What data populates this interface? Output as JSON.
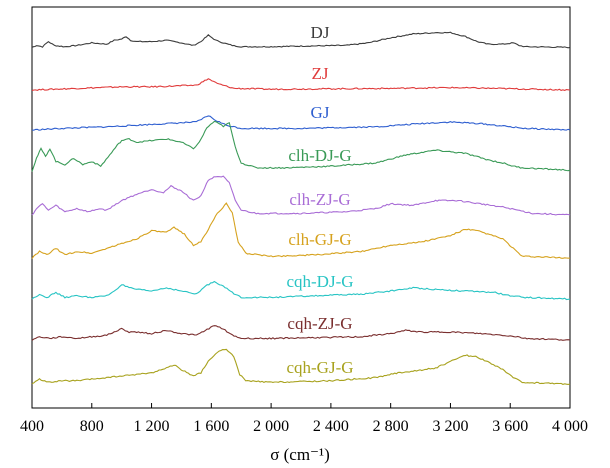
{
  "chart_data": {
    "type": "line",
    "xlabel": "σ (cm⁻¹)",
    "xlim": [
      400,
      4000
    ],
    "x_ticks": [
      400,
      800,
      1200,
      1600,
      2000,
      2400,
      2800,
      3200,
      3600,
      4000
    ],
    "x_tick_labels": [
      "400",
      "800",
      "1 200",
      "1 600",
      "2 000",
      "2 400",
      "2 800",
      "3 200",
      "3 600",
      "4 000"
    ],
    "y_ticks_shown": false,
    "grid": false,
    "legend": "none",
    "series": [
      {
        "name": "DJ",
        "color": "#3c3c3c",
        "profile": "base",
        "amp": 0.8,
        "values_points": [
          [
            400,
            0.5
          ],
          [
            430,
            2
          ],
          [
            470,
            1
          ],
          [
            510,
            5
          ],
          [
            550,
            2
          ],
          [
            620,
            1
          ],
          [
            700,
            2
          ],
          [
            800,
            4
          ],
          [
            900,
            3
          ],
          [
            950,
            6
          ],
          [
            1000,
            7
          ],
          [
            1030,
            9
          ],
          [
            1060,
            6
          ],
          [
            1100,
            5
          ],
          [
            1200,
            5
          ],
          [
            1300,
            6
          ],
          [
            1400,
            4
          ],
          [
            1480,
            2
          ],
          [
            1530,
            5
          ],
          [
            1580,
            10
          ],
          [
            1630,
            6
          ],
          [
            1680,
            4
          ],
          [
            1740,
            2
          ],
          [
            1800,
            1
          ],
          [
            2000,
            1
          ],
          [
            2200,
            1.5
          ],
          [
            2500,
            2
          ],
          [
            2650,
            4
          ],
          [
            2800,
            8
          ],
          [
            2950,
            11
          ],
          [
            3100,
            12
          ],
          [
            3200,
            12
          ],
          [
            3300,
            9
          ],
          [
            3380,
            5
          ],
          [
            3450,
            3
          ],
          [
            3550,
            3
          ],
          [
            3620,
            4
          ],
          [
            3660,
            2
          ],
          [
            3700,
            1
          ],
          [
            4000,
            0.5
          ]
        ]
      },
      {
        "name": "ZJ",
        "color": "#e03b3b",
        "profile": "flat",
        "amp": 1.0,
        "values_points": [
          [
            400,
            0
          ],
          [
            700,
            1
          ],
          [
            1000,
            2
          ],
          [
            1200,
            2
          ],
          [
            1500,
            3
          ],
          [
            1580,
            7
          ],
          [
            1640,
            4
          ],
          [
            1750,
            1
          ],
          [
            2000,
            0.5
          ],
          [
            2800,
            1
          ],
          [
            3200,
            1.5
          ],
          [
            3500,
            1
          ],
          [
            4000,
            0
          ]
        ]
      },
      {
        "name": "GJ",
        "color": "#2f5fd0",
        "profile": "blue",
        "amp": 1.0,
        "values_points": [
          [
            400,
            0
          ],
          [
            600,
            1
          ],
          [
            900,
            2
          ],
          [
            1100,
            3
          ],
          [
            1300,
            4
          ],
          [
            1500,
            5
          ],
          [
            1580,
            9
          ],
          [
            1630,
            6
          ],
          [
            1700,
            3
          ],
          [
            1800,
            1
          ],
          [
            2200,
            1
          ],
          [
            2700,
            2
          ],
          [
            3000,
            4
          ],
          [
            3200,
            5
          ],
          [
            3400,
            4
          ],
          [
            3600,
            2
          ],
          [
            3700,
            1
          ],
          [
            4000,
            0
          ]
        ]
      },
      {
        "name": "clh-DJ-G",
        "color": "#3a9a57",
        "profile": "big",
        "amp": 1.0,
        "values_points": [
          [
            400,
            0
          ],
          [
            430,
            8
          ],
          [
            460,
            14
          ],
          [
            490,
            9
          ],
          [
            520,
            14
          ],
          [
            560,
            6
          ],
          [
            620,
            4
          ],
          [
            680,
            8
          ],
          [
            740,
            4
          ],
          [
            800,
            6
          ],
          [
            860,
            3
          ],
          [
            920,
            10
          ],
          [
            970,
            16
          ],
          [
            1000,
            19
          ],
          [
            1050,
            20
          ],
          [
            1100,
            18
          ],
          [
            1200,
            19
          ],
          [
            1300,
            20
          ],
          [
            1400,
            18
          ],
          [
            1480,
            14
          ],
          [
            1520,
            18
          ],
          [
            1570,
            27
          ],
          [
            1620,
            31
          ],
          [
            1680,
            28
          ],
          [
            1720,
            30
          ],
          [
            1760,
            15
          ],
          [
            1800,
            5
          ],
          [
            1900,
            2
          ],
          [
            2100,
            2
          ],
          [
            2400,
            3
          ],
          [
            2700,
            5
          ],
          [
            2900,
            10
          ],
          [
            3100,
            13
          ],
          [
            3300,
            11
          ],
          [
            3450,
            7
          ],
          [
            3550,
            5
          ],
          [
            3620,
            3
          ],
          [
            3680,
            2
          ],
          [
            4000,
            0.5
          ]
        ]
      },
      {
        "name": "clh-ZJ-G",
        "color": "#a96dd6",
        "profile": "big",
        "amp": 1.0,
        "values_points": [
          [
            400,
            0
          ],
          [
            430,
            4
          ],
          [
            470,
            7
          ],
          [
            510,
            3
          ],
          [
            560,
            6
          ],
          [
            620,
            2
          ],
          [
            700,
            4
          ],
          [
            780,
            2
          ],
          [
            850,
            4
          ],
          [
            900,
            3
          ],
          [
            1000,
            9
          ],
          [
            1100,
            13
          ],
          [
            1200,
            16
          ],
          [
            1280,
            14
          ],
          [
            1330,
            18
          ],
          [
            1400,
            15
          ],
          [
            1480,
            9
          ],
          [
            1530,
            12
          ],
          [
            1580,
            22
          ],
          [
            1630,
            24
          ],
          [
            1680,
            24
          ],
          [
            1720,
            20
          ],
          [
            1760,
            9
          ],
          [
            1800,
            3
          ],
          [
            1900,
            1
          ],
          [
            2200,
            1
          ],
          [
            2500,
            2
          ],
          [
            2700,
            4
          ],
          [
            2800,
            7
          ],
          [
            2950,
            6
          ],
          [
            3100,
            9
          ],
          [
            3250,
            9
          ],
          [
            3400,
            7
          ],
          [
            3550,
            5
          ],
          [
            3650,
            3
          ],
          [
            3750,
            1
          ],
          [
            4000,
            0
          ]
        ]
      },
      {
        "name": "clh-GJ-G",
        "color": "#d6a21e",
        "profile": "big",
        "amp": 1.0,
        "values_points": [
          [
            400,
            0
          ],
          [
            450,
            4
          ],
          [
            500,
            2
          ],
          [
            560,
            6
          ],
          [
            620,
            2
          ],
          [
            700,
            4
          ],
          [
            800,
            3
          ],
          [
            900,
            6
          ],
          [
            1000,
            9
          ],
          [
            1100,
            12
          ],
          [
            1200,
            17
          ],
          [
            1300,
            16
          ],
          [
            1350,
            19
          ],
          [
            1420,
            15
          ],
          [
            1480,
            8
          ],
          [
            1530,
            10
          ],
          [
            1580,
            18
          ],
          [
            1640,
            28
          ],
          [
            1700,
            34
          ],
          [
            1740,
            28
          ],
          [
            1780,
            10
          ],
          [
            1830,
            3
          ],
          [
            2000,
            1
          ],
          [
            2300,
            2
          ],
          [
            2600,
            4
          ],
          [
            2800,
            8
          ],
          [
            3000,
            10
          ],
          [
            3200,
            14
          ],
          [
            3300,
            18
          ],
          [
            3380,
            17
          ],
          [
            3450,
            15
          ],
          [
            3550,
            12
          ],
          [
            3620,
            6
          ],
          [
            3680,
            1
          ],
          [
            4000,
            0
          ]
        ]
      },
      {
        "name": "cqh-DJ-G",
        "color": "#28c4c4",
        "profile": "mid",
        "amp": 1.0,
        "values_points": [
          [
            400,
            0
          ],
          [
            450,
            3
          ],
          [
            500,
            1
          ],
          [
            560,
            4
          ],
          [
            620,
            1
          ],
          [
            700,
            2
          ],
          [
            800,
            1
          ],
          [
            900,
            2
          ],
          [
            950,
            5
          ],
          [
            1000,
            9
          ],
          [
            1050,
            7
          ],
          [
            1100,
            6
          ],
          [
            1200,
            5
          ],
          [
            1300,
            7
          ],
          [
            1400,
            5
          ],
          [
            1500,
            3
          ],
          [
            1560,
            8
          ],
          [
            1620,
            11
          ],
          [
            1680,
            8
          ],
          [
            1740,
            4
          ],
          [
            1800,
            1
          ],
          [
            2000,
            1
          ],
          [
            2300,
            2
          ],
          [
            2600,
            3
          ],
          [
            2800,
            5
          ],
          [
            2950,
            7
          ],
          [
            3100,
            6
          ],
          [
            3300,
            5
          ],
          [
            3500,
            4
          ],
          [
            3600,
            2
          ],
          [
            3700,
            1
          ],
          [
            4000,
            0
          ]
        ]
      },
      {
        "name": "cqh-ZJ-G",
        "color": "#7a2f2f",
        "profile": "mid",
        "amp": 1.0,
        "values_points": [
          [
            400,
            0
          ],
          [
            450,
            2
          ],
          [
            520,
            1
          ],
          [
            600,
            2
          ],
          [
            700,
            1
          ],
          [
            800,
            2
          ],
          [
            900,
            3
          ],
          [
            1000,
            7
          ],
          [
            1050,
            5
          ],
          [
            1100,
            5
          ],
          [
            1200,
            4
          ],
          [
            1300,
            6
          ],
          [
            1400,
            4
          ],
          [
            1500,
            3
          ],
          [
            1560,
            6
          ],
          [
            1620,
            9
          ],
          [
            1680,
            7
          ],
          [
            1740,
            3
          ],
          [
            1800,
            1
          ],
          [
            2000,
            1
          ],
          [
            2300,
            1.5
          ],
          [
            2600,
            2
          ],
          [
            2800,
            4
          ],
          [
            2900,
            6
          ],
          [
            3000,
            5
          ],
          [
            3200,
            5
          ],
          [
            3400,
            4
          ],
          [
            3550,
            3
          ],
          [
            3650,
            2
          ],
          [
            3700,
            1
          ],
          [
            4000,
            0
          ]
        ]
      },
      {
        "name": "cqh-GJ-G",
        "color": "#a8a21e",
        "profile": "big",
        "amp": 1.0,
        "values_points": [
          [
            400,
            0
          ],
          [
            450,
            3
          ],
          [
            520,
            1
          ],
          [
            600,
            2
          ],
          [
            700,
            2
          ],
          [
            800,
            3
          ],
          [
            900,
            4
          ],
          [
            1000,
            5
          ],
          [
            1100,
            6
          ],
          [
            1200,
            7
          ],
          [
            1300,
            10
          ],
          [
            1350,
            12
          ],
          [
            1400,
            9
          ],
          [
            1480,
            5
          ],
          [
            1530,
            7
          ],
          [
            1580,
            14
          ],
          [
            1640,
            20
          ],
          [
            1700,
            22
          ],
          [
            1750,
            17
          ],
          [
            1790,
            6
          ],
          [
            1830,
            2
          ],
          [
            2000,
            1
          ],
          [
            2400,
            2
          ],
          [
            2700,
            4
          ],
          [
            2850,
            7
          ],
          [
            2950,
            8
          ],
          [
            3100,
            10
          ],
          [
            3200,
            14
          ],
          [
            3300,
            18
          ],
          [
            3370,
            17
          ],
          [
            3450,
            14
          ],
          [
            3550,
            9
          ],
          [
            3620,
            4
          ],
          [
            3680,
            1
          ],
          [
            4000,
            0
          ]
        ]
      }
    ]
  }
}
